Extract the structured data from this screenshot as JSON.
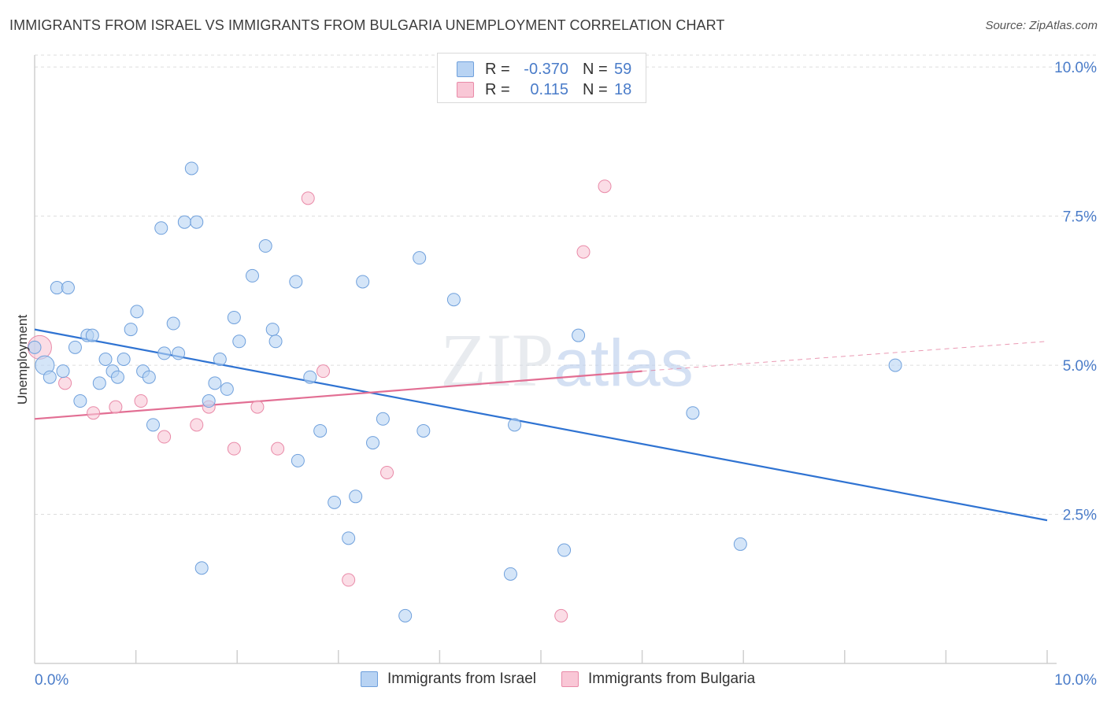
{
  "header": {
    "title": "IMMIGRANTS FROM ISRAEL VS IMMIGRANTS FROM BULGARIA UNEMPLOYMENT CORRELATION CHART",
    "source": "Source: ZipAtlas.com"
  },
  "legend_box": {
    "rows": [
      {
        "r_label": "R =",
        "r_value": "-0.370",
        "n_label": "N =",
        "n_value": "59"
      },
      {
        "r_label": "R =",
        "r_value": "0.115",
        "n_label": "N =",
        "n_value": "18"
      }
    ]
  },
  "bottom_legend": {
    "israel": "Immigrants from Israel",
    "bulgaria": "Immigrants from Bulgaria"
  },
  "chart_data": {
    "type": "scatter",
    "title": "IMMIGRANTS FROM ISRAEL VS IMMIGRANTS FROM BULGARIA UNEMPLOYMENT CORRELATION CHART",
    "xlabel": "",
    "ylabel": "Unemployment",
    "xlim": [
      0,
      10
    ],
    "ylim": [
      0,
      10.2
    ],
    "x_tick_labels": [
      "0.0%",
      "10.0%"
    ],
    "y_ticks": [
      2.5,
      5.0,
      7.5,
      10.0
    ],
    "y_tick_labels": [
      "2.5%",
      "5.0%",
      "7.5%",
      "10.0%"
    ],
    "grid": true,
    "watermark": "ZIPatlas",
    "colors": {
      "israel_fill": "#b8d3f3",
      "israel_stroke": "#6fa0dc",
      "israel_line": "#2f73d2",
      "bulgaria_fill": "#f9c7d6",
      "bulgaria_stroke": "#e98aa8",
      "bulgaria_line": "#e26e93",
      "tick_label": "#4a7cc9",
      "grid": "#dddddd"
    },
    "series": [
      {
        "name": "Immigrants from Israel",
        "r": -0.37,
        "n": 59,
        "trend": {
          "x": [
            0.0,
            10.0
          ],
          "y": [
            5.6,
            2.4
          ]
        },
        "points": [
          [
            0.0,
            5.3
          ],
          [
            0.1,
            5.0
          ],
          [
            0.15,
            4.8
          ],
          [
            0.22,
            6.3
          ],
          [
            0.33,
            6.3
          ],
          [
            0.28,
            4.9
          ],
          [
            0.4,
            5.3
          ],
          [
            0.45,
            4.4
          ],
          [
            0.52,
            5.5
          ],
          [
            0.57,
            5.5
          ],
          [
            0.64,
            4.7
          ],
          [
            0.7,
            5.1
          ],
          [
            0.77,
            4.9
          ],
          [
            0.82,
            4.8
          ],
          [
            0.88,
            5.1
          ],
          [
            0.95,
            5.6
          ],
          [
            1.01,
            5.9
          ],
          [
            1.07,
            4.9
          ],
          [
            1.13,
            4.8
          ],
          [
            1.17,
            4.0
          ],
          [
            1.25,
            7.3
          ],
          [
            1.28,
            5.2
          ],
          [
            1.37,
            5.7
          ],
          [
            1.42,
            5.2
          ],
          [
            1.48,
            7.4
          ],
          [
            1.55,
            8.3
          ],
          [
            1.6,
            7.4
          ],
          [
            1.65,
            1.6
          ],
          [
            1.72,
            4.4
          ],
          [
            1.78,
            4.7
          ],
          [
            1.83,
            5.1
          ],
          [
            1.9,
            4.6
          ],
          [
            1.97,
            5.8
          ],
          [
            2.02,
            5.4
          ],
          [
            2.15,
            6.5
          ],
          [
            2.28,
            7.0
          ],
          [
            2.35,
            5.6
          ],
          [
            2.38,
            5.4
          ],
          [
            2.58,
            6.4
          ],
          [
            2.6,
            3.4
          ],
          [
            2.72,
            4.8
          ],
          [
            2.82,
            3.9
          ],
          [
            2.96,
            2.7
          ],
          [
            3.1,
            2.1
          ],
          [
            3.17,
            2.8
          ],
          [
            3.24,
            6.4
          ],
          [
            3.34,
            3.7
          ],
          [
            3.44,
            4.1
          ],
          [
            3.66,
            0.8
          ],
          [
            3.8,
            6.8
          ],
          [
            3.84,
            3.9
          ],
          [
            4.14,
            6.1
          ],
          [
            4.7,
            1.5
          ],
          [
            4.74,
            4.0
          ],
          [
            5.23,
            1.9
          ],
          [
            5.37,
            5.5
          ],
          [
            6.5,
            4.2
          ],
          [
            6.97,
            2.0
          ],
          [
            8.5,
            5.0
          ]
        ]
      },
      {
        "name": "Immigrants from Bulgaria",
        "r": 0.115,
        "n": 18,
        "trend": {
          "x": [
            0.0,
            6.0
          ],
          "y": [
            4.1,
            4.9
          ]
        },
        "trend_extension": {
          "x": [
            6.0,
            10.0
          ],
          "y": [
            4.9,
            5.4
          ]
        },
        "points": [
          [
            0.05,
            5.3
          ],
          [
            0.3,
            4.7
          ],
          [
            0.58,
            4.2
          ],
          [
            0.8,
            4.3
          ],
          [
            1.05,
            4.4
          ],
          [
            1.28,
            3.8
          ],
          [
            1.6,
            4.0
          ],
          [
            1.72,
            4.3
          ],
          [
            1.97,
            3.6
          ],
          [
            2.2,
            4.3
          ],
          [
            2.4,
            3.6
          ],
          [
            2.7,
            7.8
          ],
          [
            2.85,
            4.9
          ],
          [
            3.1,
            1.4
          ],
          [
            3.48,
            3.2
          ],
          [
            5.2,
            0.8
          ],
          [
            5.42,
            6.9
          ],
          [
            5.63,
            8.0
          ]
        ]
      }
    ]
  }
}
